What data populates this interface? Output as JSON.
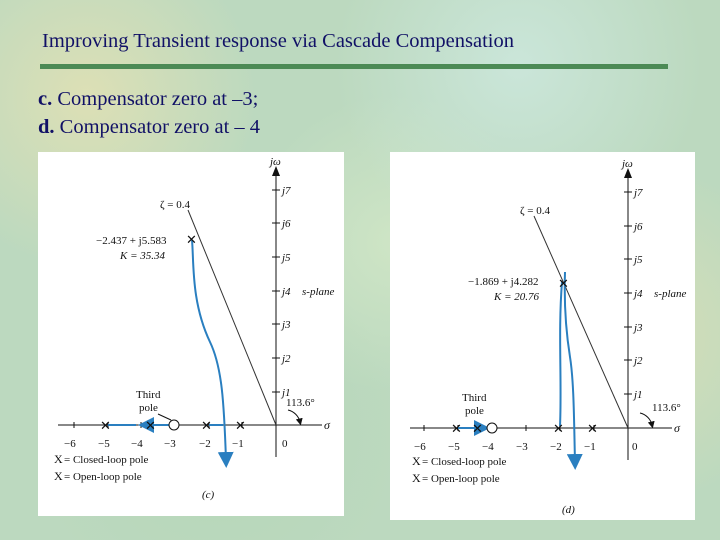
{
  "title": "Improving Transient response via Cascade Compensation",
  "items": [
    {
      "letter": "c.",
      "text": " Compensator zero at –3;"
    },
    {
      "letter": "d.",
      "text": " Compensator zero at – 4"
    }
  ],
  "panels": {
    "c": {
      "y_axis_label": "jω",
      "x_axis_label": "σ",
      "y_ticks": [
        "j7",
        "j6",
        "j5",
        "j4",
        "j3",
        "j2",
        "j1"
      ],
      "x_ticks": [
        "−6",
        "−5",
        "−4",
        "−3",
        "−2",
        "−1",
        "0"
      ],
      "zeta_label": "ζ = 0.4",
      "point_label": "−2.437 + j5.583",
      "gain_label": "K = 35.34",
      "splane_label": "s-plane",
      "third_pole_label": [
        "Third",
        "pole"
      ],
      "angle_label": "113.6°",
      "legend": [
        {
          "mark": "X",
          "text": " = Closed-loop pole"
        },
        {
          "mark": "X",
          "text": " = Open-loop pole"
        }
      ],
      "caption": "(c)"
    },
    "d": {
      "y_axis_label": "jω",
      "x_axis_label": "σ",
      "y_ticks": [
        "j7",
        "j6",
        "j5",
        "j4",
        "j3",
        "j2",
        "j1"
      ],
      "x_ticks": [
        "−6",
        "−5",
        "−4",
        "−3",
        "−2",
        "−1",
        "0"
      ],
      "zeta_label": "ζ = 0.4",
      "point_label": "−1.869 + j4.282",
      "gain_label": "K = 20.76",
      "splane_label": "s-plane",
      "third_pole_label": [
        "Third",
        "pole"
      ],
      "angle_label": "113.6°",
      "legend": [
        {
          "mark": "X",
          "text": " = Closed-loop pole"
        },
        {
          "mark": "X",
          "text": " = Open-loop pole"
        }
      ],
      "caption": "(d)"
    }
  },
  "colors": {
    "heading_text": "#111166",
    "rule": "#4c8a55",
    "locus": "#2a7fc0",
    "axis": "#111111"
  }
}
